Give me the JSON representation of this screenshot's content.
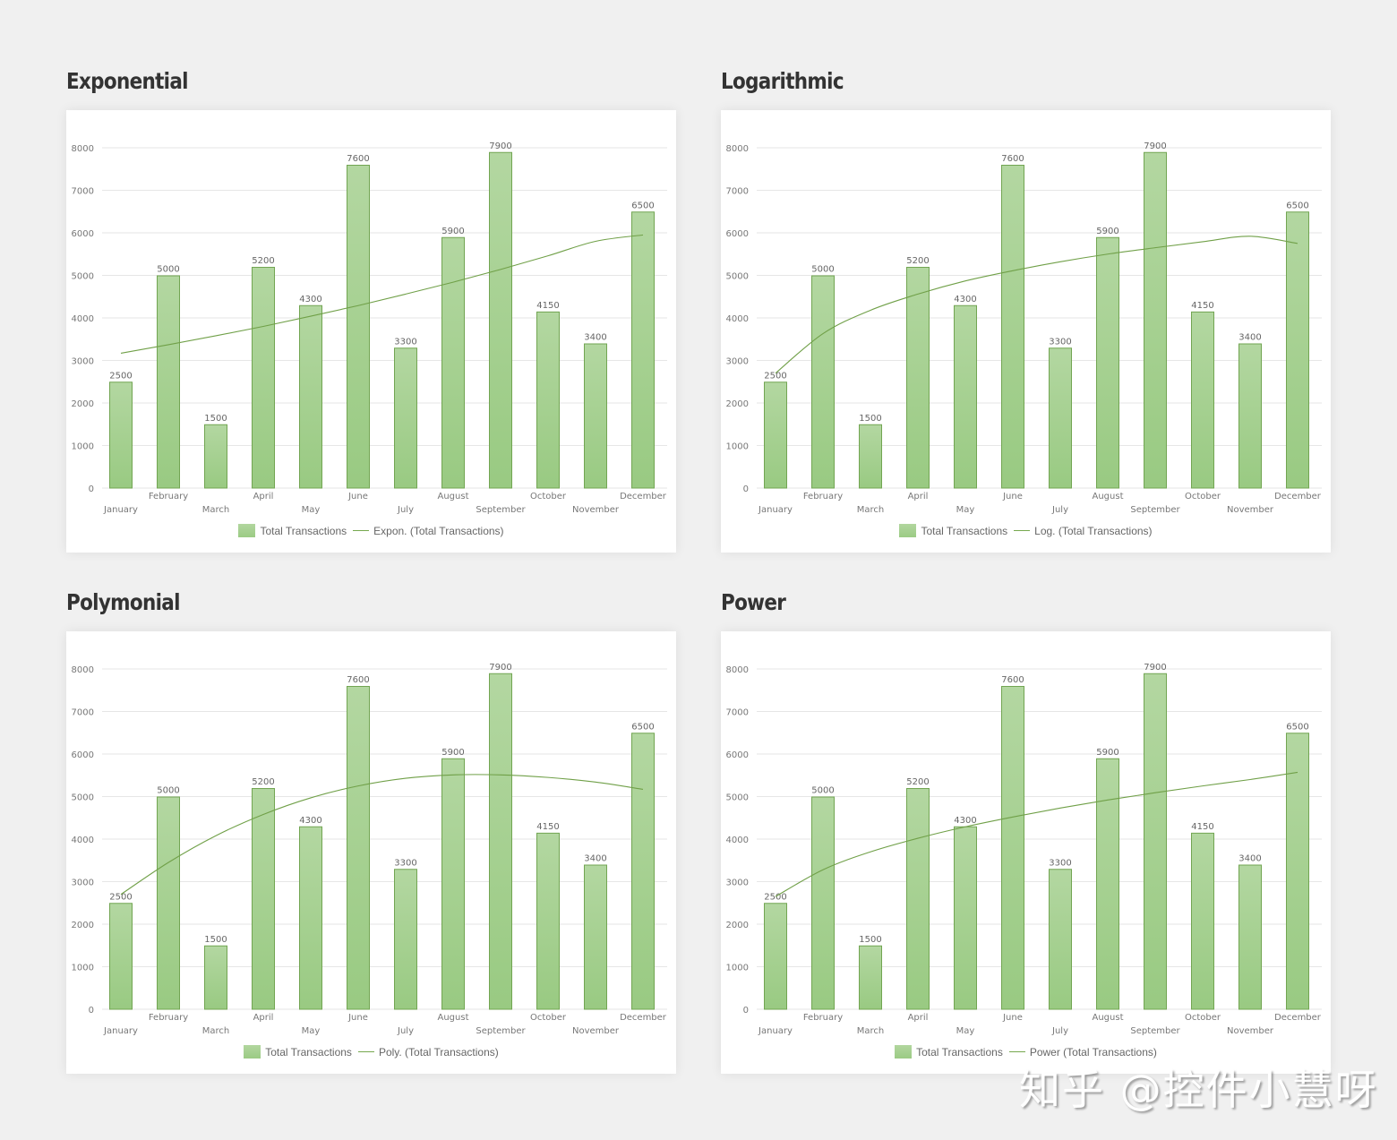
{
  "panels": [
    {
      "title": "Exponential",
      "legend_series": "Total Transactions",
      "legend_trend": "Expon. (Total Transactions)"
    },
    {
      "title": "Logarithmic",
      "legend_series": "Total Transactions",
      "legend_trend": "Log. (Total Transactions)"
    },
    {
      "title": "Polymonial",
      "legend_series": "Total Transactions",
      "legend_trend": "Poly. (Total Transactions)"
    },
    {
      "title": "Power",
      "legend_series": "Total Transactions",
      "legend_trend": "Power (Total Transactions)"
    }
  ],
  "watermark": "知乎 @控件小慧呀",
  "colors": {
    "bar_top": "#b3d7a1",
    "bar_bottom": "#99ca82",
    "bar_border": "#72a552",
    "trend": "#70a048",
    "grid": "#e6e6e6",
    "background": "#f0f0f0"
  },
  "chart_data": [
    {
      "type": "bar",
      "title": "Exponential",
      "categories": [
        "January",
        "February",
        "March",
        "April",
        "May",
        "June",
        "July",
        "August",
        "September",
        "October",
        "November",
        "December"
      ],
      "series": [
        {
          "name": "Total Transactions",
          "values": [
            2500,
            5000,
            1500,
            5200,
            4300,
            7600,
            3300,
            5900,
            7900,
            4150,
            3400,
            6500
          ]
        },
        {
          "name": "Expon. (Total Transactions)",
          "type": "line",
          "values": [
            3170,
            3370,
            3580,
            3800,
            4040,
            4290,
            4560,
            4840,
            5140,
            5460,
            5800,
            5950
          ]
        }
      ],
      "yticks": [
        0,
        1000,
        2000,
        3000,
        4000,
        5000,
        6000,
        7000,
        8000
      ],
      "ylim": [
        0,
        8000
      ],
      "grid": true,
      "legend_position": "bottom"
    },
    {
      "type": "bar",
      "title": "Logarithmic",
      "categories": [
        "January",
        "February",
        "March",
        "April",
        "May",
        "June",
        "July",
        "August",
        "September",
        "October",
        "November",
        "December"
      ],
      "series": [
        {
          "name": "Total Transactions",
          "values": [
            2500,
            5000,
            1500,
            5200,
            4300,
            7600,
            3300,
            5900,
            7900,
            4150,
            3400,
            6500
          ]
        },
        {
          "name": "Log. (Total Transactions)",
          "type": "line",
          "values": [
            2700,
            3630,
            4180,
            4560,
            4870,
            5110,
            5320,
            5500,
            5650,
            5790,
            5920,
            5750
          ]
        }
      ],
      "yticks": [
        0,
        1000,
        2000,
        3000,
        4000,
        5000,
        6000,
        7000,
        8000
      ],
      "ylim": [
        0,
        8000
      ],
      "grid": true,
      "legend_position": "bottom"
    },
    {
      "type": "bar",
      "title": "Polymonial",
      "categories": [
        "January",
        "February",
        "March",
        "April",
        "May",
        "June",
        "July",
        "August",
        "September",
        "October",
        "November",
        "December"
      ],
      "series": [
        {
          "name": "Total Transactions",
          "values": [
            2500,
            5000,
            1500,
            5200,
            4300,
            7600,
            3300,
            5900,
            7900,
            4150,
            3400,
            6500
          ]
        },
        {
          "name": "Poly. (Total Transactions)",
          "type": "line",
          "values": [
            2700,
            3450,
            4080,
            4580,
            4970,
            5250,
            5430,
            5510,
            5510,
            5450,
            5340,
            5170
          ]
        }
      ],
      "yticks": [
        0,
        1000,
        2000,
        3000,
        4000,
        5000,
        6000,
        7000,
        8000
      ],
      "ylim": [
        0,
        8000
      ],
      "grid": true,
      "legend_position": "bottom"
    },
    {
      "type": "bar",
      "title": "Power",
      "categories": [
        "January",
        "February",
        "March",
        "April",
        "May",
        "June",
        "July",
        "August",
        "September",
        "October",
        "November",
        "December"
      ],
      "series": [
        {
          "name": "Total Transactions",
          "values": [
            2500,
            5000,
            1500,
            5200,
            4300,
            7600,
            3300,
            5900,
            7900,
            4150,
            3400,
            6500
          ]
        },
        {
          "name": "Power (Total Transactions)",
          "type": "line",
          "values": [
            2650,
            3280,
            3700,
            4020,
            4290,
            4520,
            4730,
            4920,
            5090,
            5250,
            5400,
            5570
          ]
        }
      ],
      "yticks": [
        0,
        1000,
        2000,
        3000,
        4000,
        5000,
        6000,
        7000,
        8000
      ],
      "ylim": [
        0,
        8000
      ],
      "grid": true,
      "legend_position": "bottom"
    }
  ]
}
